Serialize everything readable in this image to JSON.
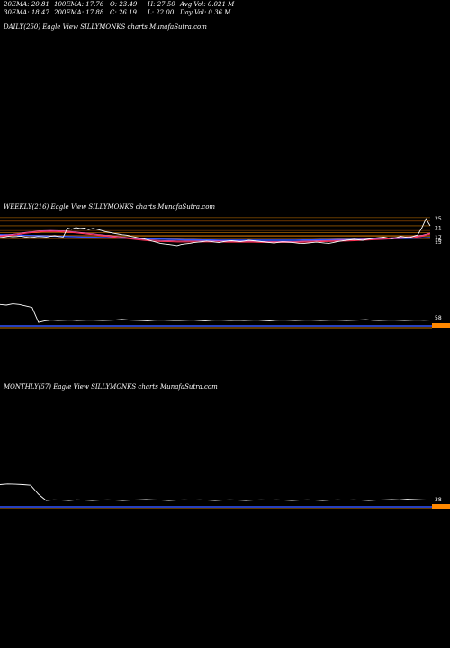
{
  "header": {
    "ema20": "20EMA: 20.81",
    "ema100": "100EMA: 17.76",
    "open": "O: 23.49",
    "high": "H: 27.50",
    "avgvol": "Avg Vol: 0.021  M",
    "ema30": "30EMA: 18.47",
    "ema200": "200EMA: 17.88",
    "close": "C: 26.19",
    "low": "L: 22.00",
    "dayvol": "Day Vol: 0.36  M"
  },
  "panels": {
    "daily": "DAILY(250) Eagle   View  SILLYMONKS charts MunafaSutra.com",
    "weekly": "WEEKLY(216) Eagle   View  SILLYMONKS charts MunafaSutra.com",
    "monthly": "MONTHLY(57) Eagle   View  SILLYMONKS charts MunafaSutra.com"
  },
  "colors": {
    "price": "#ffffff",
    "ema_blue": "#3355ff",
    "ema_orange": "#ff9900",
    "ema_red": "#ff3355",
    "ema_pink": "#ff66cc",
    "volume_orange": "#ff8800"
  },
  "chart_data": [
    {
      "type": "line",
      "name": "weekly",
      "tick_labels": [
        "25",
        "21",
        "17",
        "16",
        "15"
      ],
      "y_ticks": [
        25,
        21,
        17,
        16,
        15
      ],
      "ylim": [
        10,
        27
      ],
      "price": [
        17,
        17.2,
        17.5,
        17.3,
        17.4,
        17.6,
        17.2,
        17.0,
        17.1,
        17.4,
        17.3,
        17.2,
        17.5,
        17.7,
        17.4,
        17.2,
        21,
        20.5,
        21.2,
        20.8,
        21,
        20.3,
        20.9,
        20.5,
        20,
        19.5,
        19.2,
        18.8,
        18.5,
        18.2,
        18,
        17.5,
        17.2,
        16.8,
        16.5,
        16,
        15.5,
        15,
        14.5,
        14.2,
        14,
        13.8,
        13.5,
        14,
        14.3,
        14.5,
        14.8,
        15,
        15.2,
        15.5,
        15.3,
        15,
        14.8,
        15.2,
        15.5,
        15.6,
        15.4,
        15.2,
        15.5,
        15.8,
        15.6,
        15.4,
        15.2,
        15,
        14.8,
        14.6,
        14.9,
        15.1,
        15,
        14.9,
        14.7,
        14.5,
        14.4,
        14.6,
        14.8,
        15.0,
        14.8,
        14.6,
        14.5,
        14.8,
        15.2,
        15.5,
        15.8,
        16,
        16.2,
        16,
        15.8,
        16.2,
        16.5,
        16.8,
        17,
        17.2,
        16.8,
        16.5,
        17,
        17.5,
        17.2,
        16.9,
        17.5,
        18,
        21,
        25,
        22
      ],
      "ema_slow": [
        18.2,
        18.1,
        18.0,
        17.9,
        17.8,
        17.7,
        17.6,
        17.5,
        17.4,
        17.3,
        17.2,
        17.1,
        17.0,
        16.9,
        16.8,
        16.7,
        16.6,
        16.5,
        16.4,
        16.3,
        16.2,
        16.1,
        16.0,
        16.0,
        15.9,
        15.9,
        15.8,
        15.8,
        15.8,
        15.8,
        15.8,
        15.8,
        15.8,
        15.8,
        15.8,
        15.8,
        15.9,
        15.9,
        16.0,
        16.0,
        16.1,
        16.1,
        16.2,
        16.2,
        16.3,
        16.3,
        16.4,
        16.5,
        16.6,
        16.7,
        16.8,
        17.0
      ],
      "ema_fast": [
        17.5,
        17.8,
        18.2,
        18.8,
        19.2,
        19.5,
        19.6,
        19.5,
        19.3,
        19.0,
        18.6,
        18.2,
        17.8,
        17.4,
        17.0,
        16.6,
        16.2,
        15.8,
        15.5,
        15.3,
        15.2,
        15.1,
        15.1,
        15.1,
        15.1,
        15.1,
        15.1,
        15.0,
        15.0,
        15.0,
        15.0,
        14.9,
        14.9,
        14.9,
        14.9,
        14.9,
        15.0,
        15.1,
        15.2,
        15.3,
        15.4,
        15.5,
        15.6,
        15.8,
        16.0,
        16.2,
        16.4,
        16.6,
        16.8,
        17.0,
        17.5,
        18.5
      ]
    },
    {
      "type": "line",
      "name": "weekly-indicator",
      "tick_labels": [
        "58"
      ],
      "y_ticks": [
        58
      ],
      "ylim": [
        0,
        100
      ],
      "value": [
        90,
        88,
        92,
        90,
        85,
        80,
        30,
        35,
        38,
        36,
        37,
        38,
        36,
        37,
        38,
        37,
        36,
        37,
        38,
        40,
        38,
        37,
        36,
        35,
        37,
        38,
        37,
        36,
        36,
        37,
        38,
        36,
        35,
        37,
        38,
        37,
        36,
        37,
        36,
        37,
        38,
        36,
        35,
        37,
        38,
        37,
        36,
        37,
        38,
        37,
        36,
        37,
        38,
        37,
        36,
        37,
        38,
        39,
        37,
        36,
        37,
        38,
        37,
        36,
        37,
        38,
        37,
        38
      ]
    },
    {
      "type": "line",
      "name": "monthly-indicator",
      "tick_labels": [
        "38"
      ],
      "y_ticks": [
        38
      ],
      "ylim": [
        0,
        100
      ],
      "value": [
        90,
        92,
        91,
        90,
        88,
        60,
        40,
        42,
        41,
        40,
        42,
        41,
        40,
        41,
        42,
        41,
        40,
        41,
        42,
        43,
        42,
        41,
        40,
        41,
        42,
        41,
        42,
        41,
        40,
        41,
        42,
        41,
        40,
        41,
        42,
        41,
        42,
        41,
        40,
        41,
        42,
        41,
        40,
        41,
        42,
        41,
        42,
        41,
        40,
        41,
        42,
        43,
        42,
        44,
        43,
        42,
        41
      ]
    }
  ]
}
